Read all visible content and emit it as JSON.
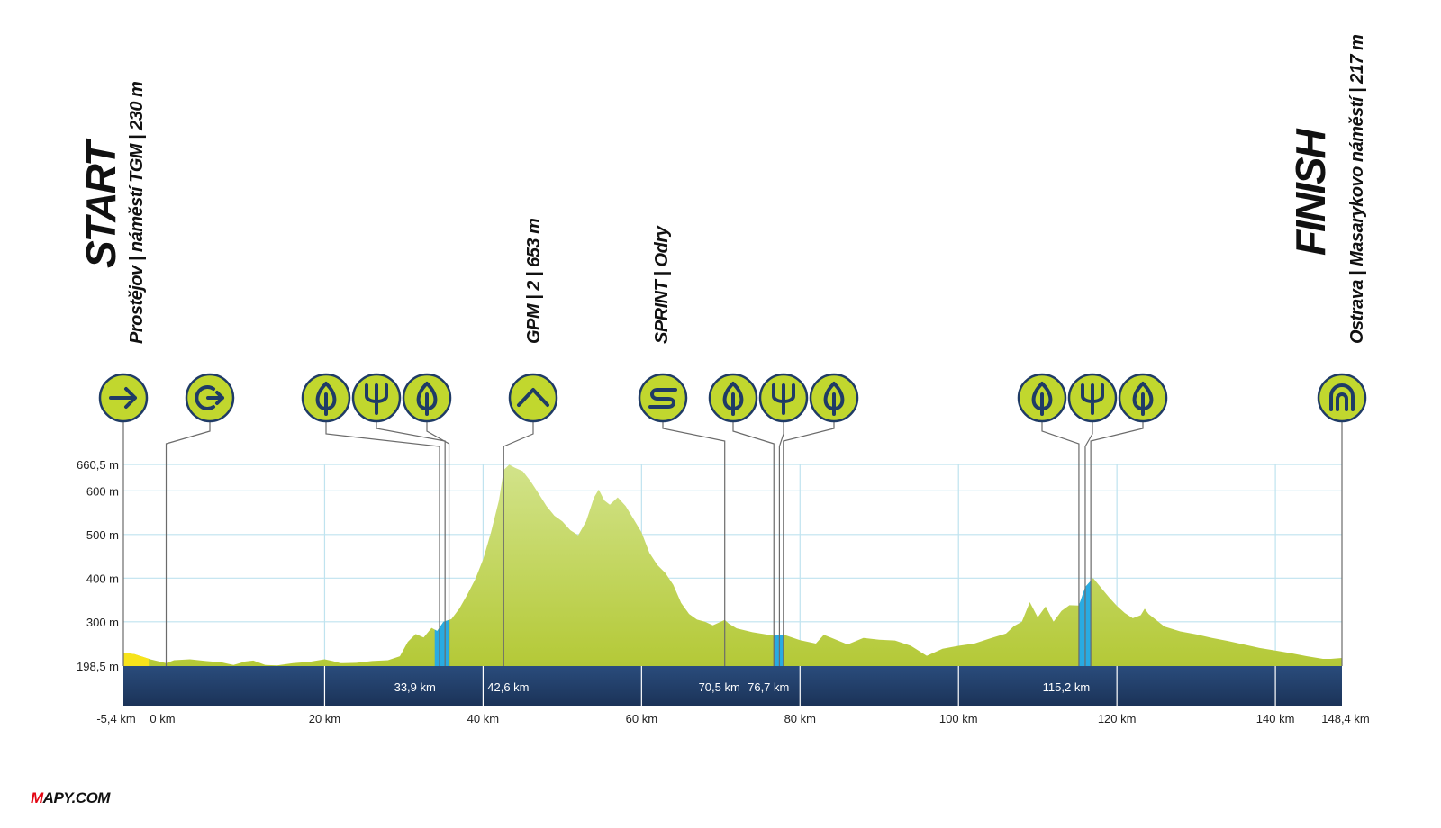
{
  "chart_data": {
    "type": "area",
    "title": "",
    "xlabel": "",
    "ylabel": "",
    "xlim": [
      -5.4,
      148.4
    ],
    "ylim": [
      198.5,
      660.5
    ],
    "x_ticks": [
      "-5,4 km",
      "0 km",
      "20 km",
      "40 km",
      "60 km",
      "80 km",
      "100 km",
      "120 km",
      "140 km",
      "148,4 km"
    ],
    "y_ticks": [
      "660,5 m",
      "600 m",
      "500 m",
      "400 m",
      "300 m",
      "198,5 m"
    ],
    "y_tick_values": [
      660.5,
      600,
      500,
      400,
      300,
      198.5
    ],
    "grid": true,
    "band_labels": [
      {
        "km": 33.9,
        "text": "33,9 km"
      },
      {
        "km": 42.6,
        "text": "42,6 km"
      },
      {
        "km": 70.5,
        "text": "70,5 km"
      },
      {
        "km": 76.7,
        "text": "76,7 km"
      },
      {
        "km": 115.2,
        "text": "115,2 km"
      }
    ],
    "profile": [
      [
        -5.4,
        229
      ],
      [
        -4,
        226
      ],
      [
        -2,
        214
      ],
      [
        0,
        205
      ],
      [
        1,
        212
      ],
      [
        3,
        214
      ],
      [
        5,
        210
      ],
      [
        7,
        207
      ],
      [
        8.5,
        201
      ],
      [
        10,
        209
      ],
      [
        11,
        211
      ],
      [
        12.5,
        201
      ],
      [
        14,
        200
      ],
      [
        16,
        205
      ],
      [
        18,
        208
      ],
      [
        20,
        214
      ],
      [
        21,
        210
      ],
      [
        22,
        205
      ],
      [
        24,
        206
      ],
      [
        26,
        210
      ],
      [
        28,
        212
      ],
      [
        29.5,
        221
      ],
      [
        30.5,
        254
      ],
      [
        31.5,
        272
      ],
      [
        32.5,
        264
      ],
      [
        33.5,
        286
      ],
      [
        34.2,
        279
      ],
      [
        35,
        300
      ],
      [
        36,
        306
      ],
      [
        37,
        330
      ],
      [
        38,
        362
      ],
      [
        39,
        397
      ],
      [
        40,
        443
      ],
      [
        41,
        505
      ],
      [
        42,
        578
      ],
      [
        42.6,
        648
      ],
      [
        43.3,
        660
      ],
      [
        44,
        653
      ],
      [
        45,
        645
      ],
      [
        46,
        622
      ],
      [
        47,
        594
      ],
      [
        48,
        565
      ],
      [
        49,
        543
      ],
      [
        50,
        530
      ],
      [
        51,
        510
      ],
      [
        52,
        498
      ],
      [
        53,
        530
      ],
      [
        54,
        585
      ],
      [
        54.6,
        603
      ],
      [
        55.3,
        578
      ],
      [
        56,
        568
      ],
      [
        57,
        585
      ],
      [
        58,
        565
      ],
      [
        59,
        535
      ],
      [
        60,
        505
      ],
      [
        61,
        458
      ],
      [
        62,
        430
      ],
      [
        63,
        412
      ],
      [
        64,
        385
      ],
      [
        65,
        343
      ],
      [
        66,
        318
      ],
      [
        67,
        305
      ],
      [
        68,
        300
      ],
      [
        69,
        292
      ],
      [
        70.5,
        304
      ],
      [
        71,
        296
      ],
      [
        72,
        285
      ],
      [
        74,
        276
      ],
      [
        76,
        270
      ],
      [
        76.7,
        268
      ],
      [
        78,
        270
      ],
      [
        79,
        264
      ],
      [
        80,
        258
      ],
      [
        82,
        250
      ],
      [
        83,
        270
      ],
      [
        84,
        263
      ],
      [
        86,
        248
      ],
      [
        88,
        263
      ],
      [
        90,
        259
      ],
      [
        92,
        257
      ],
      [
        94,
        245
      ],
      [
        96,
        222
      ],
      [
        98,
        238
      ],
      [
        100,
        245
      ],
      [
        102,
        250
      ],
      [
        104,
        262
      ],
      [
        106,
        273
      ],
      [
        107,
        290
      ],
      [
        108,
        300
      ],
      [
        109,
        345
      ],
      [
        110,
        310
      ],
      [
        111,
        335
      ],
      [
        112,
        300
      ],
      [
        113,
        325
      ],
      [
        114,
        338
      ],
      [
        115.2,
        337
      ],
      [
        116,
        380
      ],
      [
        117,
        400
      ],
      [
        118,
        378
      ],
      [
        119,
        356
      ],
      [
        120,
        336
      ],
      [
        121,
        320
      ],
      [
        122,
        308
      ],
      [
        123,
        315
      ],
      [
        123.5,
        330
      ],
      [
        124,
        318
      ],
      [
        126,
        289
      ],
      [
        128,
        278
      ],
      [
        130,
        271
      ],
      [
        132,
        263
      ],
      [
        134,
        256
      ],
      [
        136,
        248
      ],
      [
        138,
        240
      ],
      [
        140,
        234
      ],
      [
        142,
        228
      ],
      [
        144,
        221
      ],
      [
        146,
        215
      ],
      [
        147,
        215
      ],
      [
        148.4,
        217
      ]
    ],
    "blue_segments": [
      [
        33.9,
        35.7
      ],
      [
        76.7,
        77.9
      ],
      [
        115.2,
        116.7
      ]
    ],
    "yellow_segment": [
      -5.4,
      -2.2
    ],
    "markers": [
      {
        "icon": "arrow-right-icon",
        "name": "start-marker",
        "km": -5.4
      },
      {
        "icon": "neutral-start-icon",
        "name": "km0-marker",
        "km": 0
      },
      {
        "icon": "leaf-feed-icon",
        "name": "feed-zone-1-marker",
        "km": 34.5
      },
      {
        "icon": "fork-refreshment-icon",
        "name": "refreshment-1-marker",
        "km": 35.2
      },
      {
        "icon": "leaf-feed-icon",
        "name": "feed-zone-2-marker",
        "km": 35.7
      },
      {
        "icon": "gpm-chevron-icon",
        "name": "gpm-marker",
        "km": 42.6
      },
      {
        "icon": "sprint-s-icon",
        "name": "sprint-marker",
        "km": 70.5
      },
      {
        "icon": "leaf-feed-icon",
        "name": "feed-zone-3-marker",
        "km": 76.7
      },
      {
        "icon": "fork-refreshment-icon",
        "name": "refreshment-2-marker",
        "km": 77.4
      },
      {
        "icon": "leaf-feed-icon",
        "name": "feed-zone-4-marker",
        "km": 77.9
      },
      {
        "icon": "leaf-feed-icon",
        "name": "feed-zone-5-marker",
        "km": 115.2
      },
      {
        "icon": "fork-refreshment-icon",
        "name": "refreshment-3-marker",
        "km": 116.0
      },
      {
        "icon": "leaf-feed-icon",
        "name": "feed-zone-6-marker",
        "km": 116.7
      },
      {
        "icon": "finish-arch-icon",
        "name": "finish-marker",
        "km": 148.4
      }
    ],
    "annotations": {
      "start_big": "START",
      "start_sub": "Prostějov | náměstí TGM | 230 m",
      "gpm": "GPM | 2 | 653 m",
      "sprint": "SPRINT | Odry",
      "finish_big": "FINISH",
      "finish_sub": "Ostrava | Masarykovo náměstí | 217 m"
    },
    "colors": {
      "profile_top": "#d2e38a",
      "profile_bottom": "#b4c937",
      "blue": "#29abe2",
      "yellow": "#f7e31a",
      "band": "#1f3b66",
      "grid": "#bfe3ef",
      "icon_fill": "#c1d72e",
      "icon_stroke": "#1f3b66"
    }
  },
  "branding": {
    "logo_text": "MAPY.COM",
    "logo_accent": "#e30613"
  }
}
